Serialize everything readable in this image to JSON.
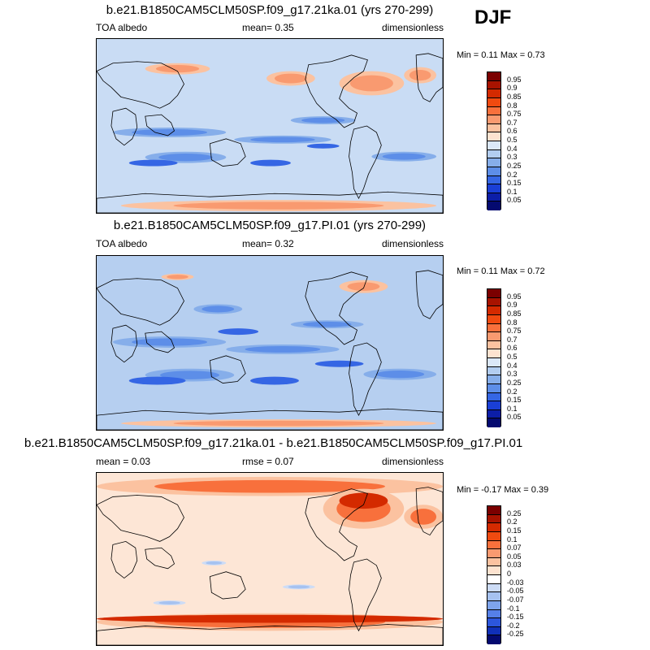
{
  "season": "DJF",
  "panels": [
    {
      "title": "b.e21.B1850CAM5CLM50SP.f09_g17.21ka.01 (yrs 270-299)",
      "left": "TOA albedo",
      "center": "mean=   0.35",
      "right": "dimensionless",
      "minmax": "Min =   0.11 Max =   0.73",
      "base": "#c9dcf4",
      "levels": [
        "0.95",
        "0.9",
        "0.85",
        "0.8",
        "0.75",
        "0.7",
        "0.6",
        "0.5",
        "0.4",
        "0.3",
        "0.25",
        "0.2",
        "0.15",
        "0.1",
        "0.05"
      ],
      "colors": [
        "#7b0000",
        "#a81300",
        "#d42a00",
        "#f04a10",
        "#f8703c",
        "#f99a70",
        "#fbc2a0",
        "#fde3d0",
        "#dbe8f8",
        "#b2cdf0",
        "#86aeea",
        "#5d8ee8",
        "#3566e4",
        "#1a3fd6",
        "#0c1ea8",
        "#040a70"
      ]
    },
    {
      "title": "b.e21.B1850CAM5CLM50SP.f09_g17.PI.01 (yrs 270-299)",
      "left": "TOA albedo",
      "center": "mean=   0.32",
      "right": "dimensionless",
      "minmax": "Min =   0.11 Max =   0.72",
      "base": "#b6cff0",
      "levels": [
        "0.95",
        "0.9",
        "0.85",
        "0.8",
        "0.75",
        "0.7",
        "0.6",
        "0.5",
        "0.4",
        "0.3",
        "0.25",
        "0.2",
        "0.15",
        "0.1",
        "0.05"
      ],
      "colors": [
        "#7b0000",
        "#a81300",
        "#d42a00",
        "#f04a10",
        "#f8703c",
        "#f99a70",
        "#fbc2a0",
        "#fde3d0",
        "#dbe8f8",
        "#b2cdf0",
        "#86aeea",
        "#5d8ee8",
        "#3566e4",
        "#1a3fd6",
        "#0c1ea8",
        "#040a70"
      ]
    },
    {
      "title": "b.e21.B1850CAM5CLM50SP.f09_g17.21ka.01 - b.e21.B1850CAM5CLM50SP.f09_g17.PI.01",
      "left": "mean =   0.03",
      "center": "rmse =   0.07",
      "right": "dimensionless",
      "minmax": "Min =  -0.17 Max =   0.39",
      "base": "#fde6d6",
      "levels": [
        "0.25",
        "0.2",
        "0.15",
        "0.1",
        "0.07",
        "0.05",
        "0.03",
        "0",
        "-0.03",
        "-0.05",
        "-0.07",
        "-0.1",
        "-0.15",
        "-0.2",
        "-0.25"
      ],
      "colors": [
        "#7b0000",
        "#a81300",
        "#d42a00",
        "#f04a10",
        "#f8703c",
        "#f99a70",
        "#fbc2a0",
        "#fde3d0",
        "#ffffff",
        "#cddcf6",
        "#a6c2f0",
        "#7ea4ec",
        "#5580e8",
        "#2c56dc",
        "#1030b8",
        "#040a70"
      ]
    }
  ]
}
